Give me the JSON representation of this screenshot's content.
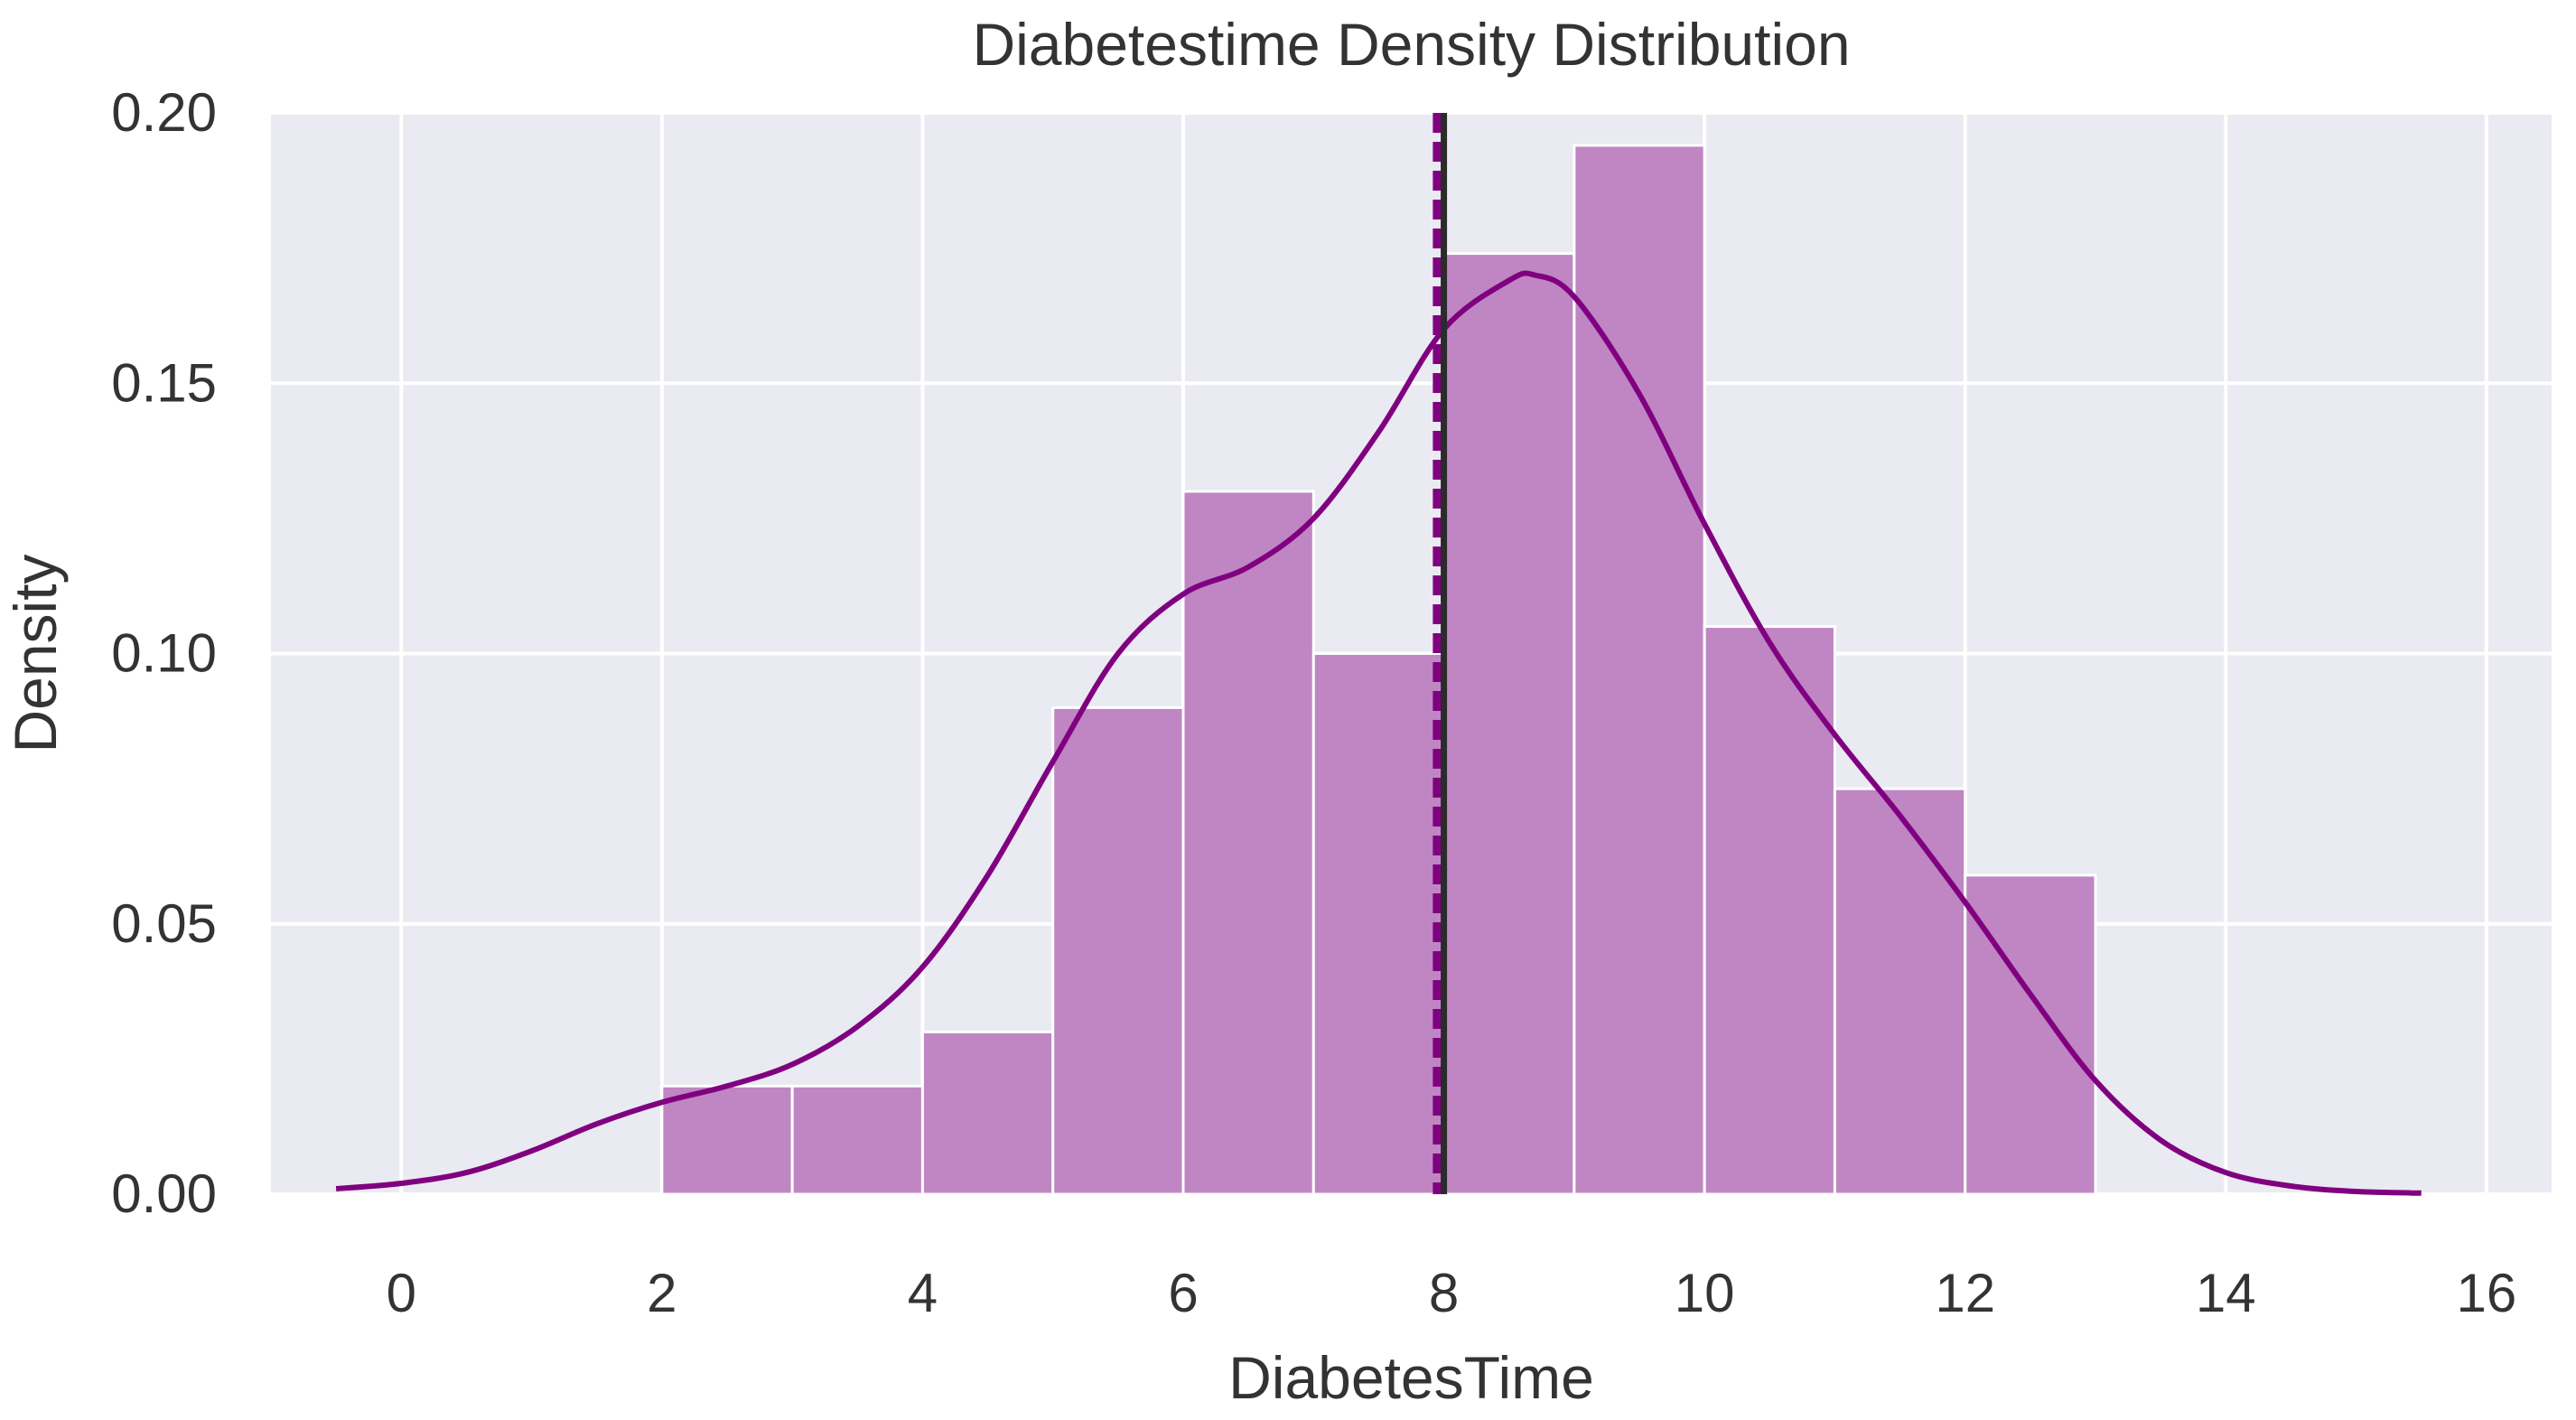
{
  "chart_data": {
    "type": "histogram",
    "title": "Diabetestime Density Distribution",
    "xlabel": "DiabetesTime",
    "ylabel": "Density",
    "xlim": [
      -1,
      16.5
    ],
    "ylim": [
      0,
      0.2
    ],
    "xticks": [
      0,
      2,
      4,
      6,
      8,
      10,
      12,
      14,
      16
    ],
    "yticks": [
      0.0,
      0.05,
      0.1,
      0.15,
      0.2
    ],
    "xtick_labels": [
      "0",
      "2",
      "4",
      "6",
      "8",
      "10",
      "12",
      "14",
      "16"
    ],
    "ytick_labels": [
      "0.00",
      "0.05",
      "0.10",
      "0.15",
      "0.20"
    ],
    "grid": true,
    "background": "#eaeaf2",
    "bar_color": "#bf86c3",
    "kde_color": "#800080",
    "mean_line_color": "#800080",
    "median_line_color": "#2b2b2b",
    "bins": [
      {
        "x0": 2,
        "x1": 3,
        "density": 0.02
      },
      {
        "x0": 3,
        "x1": 4,
        "density": 0.02
      },
      {
        "x0": 4,
        "x1": 5,
        "density": 0.03
      },
      {
        "x0": 5,
        "x1": 6,
        "density": 0.09
      },
      {
        "x0": 6,
        "x1": 7,
        "density": 0.13
      },
      {
        "x0": 7,
        "x1": 8,
        "density": 0.1
      },
      {
        "x0": 8,
        "x1": 9,
        "density": 0.174
      },
      {
        "x0": 9,
        "x1": 10,
        "density": 0.194
      },
      {
        "x0": 10,
        "x1": 11,
        "density": 0.105
      },
      {
        "x0": 11,
        "x1": 12,
        "density": 0.075
      },
      {
        "x0": 12,
        "x1": 13,
        "density": 0.059
      }
    ],
    "kde": {
      "x": [
        -0.5,
        0,
        0.5,
        1,
        1.5,
        2,
        2.5,
        3,
        3.5,
        4,
        4.5,
        5,
        5.5,
        6,
        6.5,
        7,
        7.5,
        8,
        8.5,
        8.7,
        9,
        9.5,
        10,
        10.5,
        11,
        11.5,
        12,
        12.5,
        13,
        13.5,
        14,
        14.5,
        15,
        15.5
      ],
      "y": [
        0.001,
        0.002,
        0.004,
        0.008,
        0.013,
        0.017,
        0.02,
        0.024,
        0.031,
        0.042,
        0.059,
        0.08,
        0.1,
        0.111,
        0.116,
        0.125,
        0.141,
        0.16,
        0.169,
        0.17,
        0.166,
        0.148,
        0.124,
        0.102,
        0.085,
        0.07,
        0.054,
        0.037,
        0.021,
        0.01,
        0.004,
        0.0015,
        0.0005,
        0.0002
      ]
    },
    "vlines": [
      {
        "name": "mean",
        "x": 7.95,
        "style": "dashed"
      },
      {
        "name": "median",
        "x": 8.0,
        "style": "solid"
      }
    ]
  }
}
